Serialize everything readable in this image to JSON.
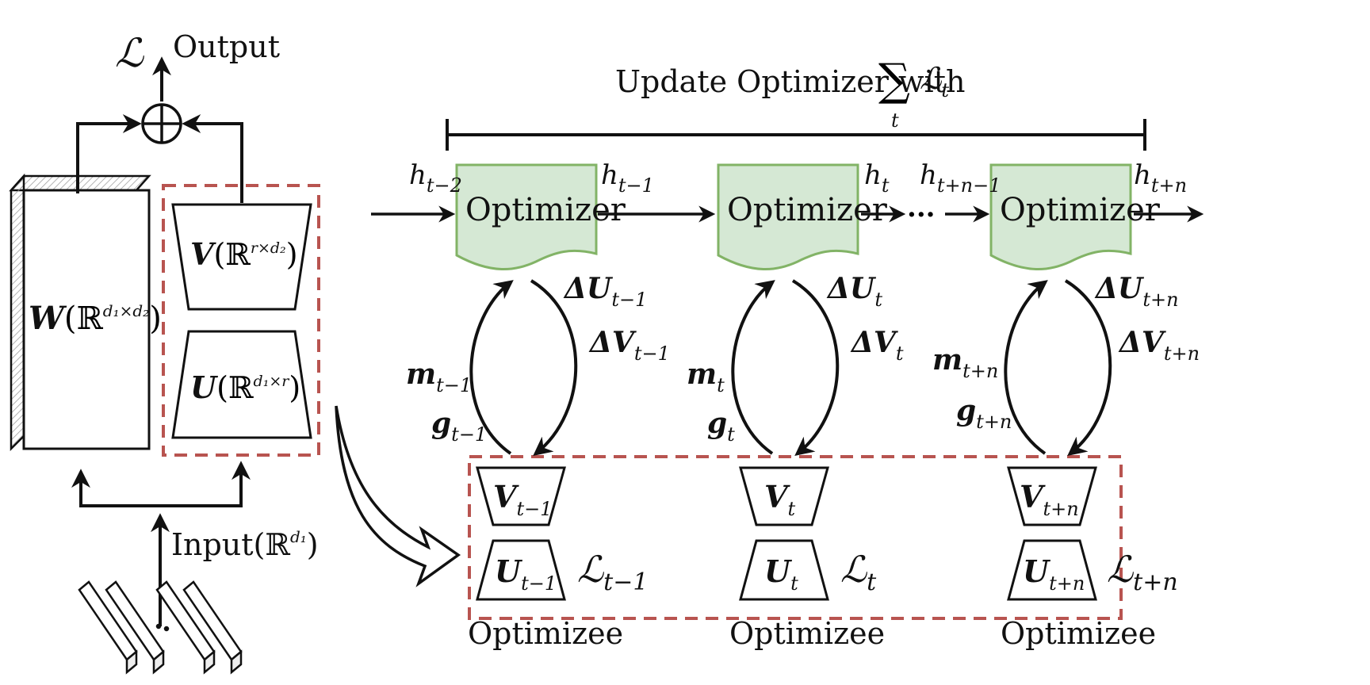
{
  "left_block": {
    "output_label": "Output",
    "loss_symbol": "ℒ",
    "w_label": "W",
    "w_space": "(ℝ",
    "w_sup": "d₁×d₂",
    "w_close": ")",
    "v_label": "V",
    "v_space": "(ℝ",
    "v_sup": "r×d₂",
    "v_close": ")",
    "u_label": "U",
    "u_space": "(ℝ",
    "u_sup": "d₁×r",
    "u_close": ")",
    "input_label": "Input(ℝ",
    "input_sup": "d₁",
    "input_close": ")"
  },
  "update_header": {
    "text": "Update Optimizer with",
    "sum": "∑",
    "sum_sub": "t",
    "loss": "ℒ",
    "loss_sub": "t"
  },
  "stages": [
    {
      "optimizer": "Optimizer",
      "h_in": "h",
      "h_in_sub": "t−2",
      "h_out": "h",
      "h_out_sub": "t−1",
      "dU": "ΔU",
      "dU_sub": "t−1",
      "dV": "ΔV",
      "dV_sub": "t−1",
      "m": "m",
      "m_sub": "t−1",
      "g": "g",
      "g_sub": "t−1",
      "V": "V",
      "V_sub": "t−1",
      "U": "U",
      "U_sub": "t−1",
      "L": "ℒ",
      "L_sub": "t−1",
      "optimizee": "Optimizee"
    },
    {
      "optimizer": "Optimizer",
      "h_out": "h",
      "h_out_sub": "t",
      "dU": "ΔU",
      "dU_sub": "t",
      "dV": "ΔV",
      "dV_sub": "t",
      "m": "m",
      "m_sub": "t",
      "g": "g",
      "g_sub": "t",
      "V": "V",
      "V_sub": "t",
      "U": "U",
      "U_sub": "t",
      "L": "ℒ",
      "L_sub": "t",
      "optimizee": "Optimizee"
    },
    {
      "optimizer": "Optimizer",
      "h_in": "h",
      "h_in_sub": "t+n−1",
      "h_out": "h",
      "h_out_sub": "t+n",
      "dU": "ΔU",
      "dU_sub": "t+n",
      "dV": "ΔV",
      "dV_sub": "t+n",
      "m": "m",
      "m_sub": "t+n",
      "g": "g",
      "g_sub": "t+n",
      "V": "V",
      "V_sub": "t+n",
      "U": "U",
      "U_sub": "t+n",
      "L": "ℒ",
      "L_sub": "t+n",
      "optimizee": "Optimizee"
    }
  ],
  "ellipsis": "···",
  "colors": {
    "optimizer_fill": "#d5e8d4",
    "optimizer_stroke": "#82b366",
    "dashed_box": "#b85450",
    "ink": "#111111"
  }
}
